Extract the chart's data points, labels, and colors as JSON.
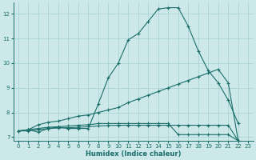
{
  "xlabel": "Humidex (Indice chaleur)",
  "bg_color": "#cce8e8",
  "grid_color": "#aad4d4",
  "line_color": "#1a6e6a",
  "xlim": [
    -0.5,
    23.5
  ],
  "ylim": [
    6.85,
    12.45
  ],
  "yticks": [
    7,
    8,
    9,
    10,
    11,
    12
  ],
  "xticks": [
    0,
    1,
    2,
    3,
    4,
    5,
    6,
    7,
    8,
    9,
    10,
    11,
    12,
    13,
    14,
    15,
    16,
    17,
    18,
    19,
    20,
    21,
    22,
    23
  ],
  "line1_x": [
    1,
    2,
    3,
    4,
    5,
    6,
    7,
    8,
    9,
    10,
    11,
    12,
    13,
    14,
    15,
    16,
    17,
    18,
    19,
    20,
    21,
    22
  ],
  "line1_y": [
    7.3,
    7.2,
    7.35,
    7.4,
    7.35,
    7.35,
    7.35,
    8.35,
    9.4,
    10.0,
    10.95,
    11.2,
    11.7,
    12.2,
    12.25,
    12.25,
    11.5,
    10.5,
    9.7,
    9.2,
    8.5,
    7.55
  ],
  "line2_x": [
    0,
    1,
    2,
    3,
    4,
    5,
    6,
    7,
    8,
    9,
    10,
    11,
    12,
    13,
    14,
    15,
    16,
    17,
    18,
    19,
    20,
    21,
    22
  ],
  "line2_y": [
    7.25,
    7.3,
    7.5,
    7.6,
    7.65,
    7.75,
    7.85,
    7.9,
    8.0,
    8.1,
    8.2,
    8.4,
    8.55,
    8.7,
    8.85,
    9.0,
    9.15,
    9.3,
    9.45,
    9.6,
    9.75,
    9.2,
    6.85
  ],
  "line3_x": [
    0,
    1,
    2,
    3,
    4,
    5,
    6,
    7,
    8,
    9,
    10,
    11,
    12,
    13,
    14,
    15,
    16,
    17,
    18,
    19,
    20,
    21,
    22
  ],
  "line3_y": [
    7.25,
    7.3,
    7.35,
    7.4,
    7.42,
    7.45,
    7.48,
    7.5,
    7.55,
    7.55,
    7.55,
    7.55,
    7.55,
    7.55,
    7.55,
    7.55,
    7.1,
    7.1,
    7.1,
    7.1,
    7.1,
    7.1,
    6.85
  ],
  "line4_x": [
    0,
    1,
    2,
    3,
    4,
    5,
    6,
    7,
    8,
    9,
    10,
    11,
    12,
    13,
    14,
    15,
    16,
    17,
    18,
    19,
    20,
    21,
    22
  ],
  "line4_y": [
    7.25,
    7.25,
    7.3,
    7.35,
    7.37,
    7.38,
    7.4,
    7.42,
    7.45,
    7.47,
    7.48,
    7.48,
    7.48,
    7.48,
    7.48,
    7.48,
    7.48,
    7.48,
    7.48,
    7.48,
    7.48,
    7.48,
    6.85
  ]
}
